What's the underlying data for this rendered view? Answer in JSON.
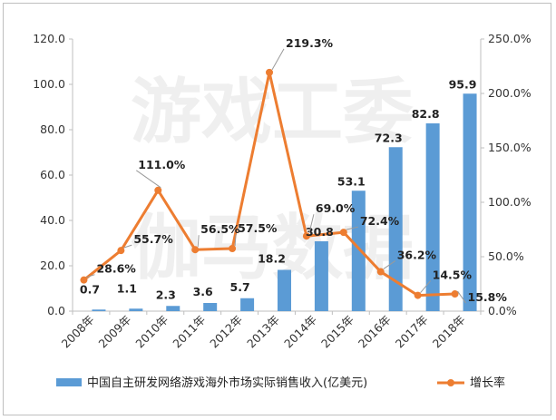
{
  "colors": {
    "bar": "#5b9bd5",
    "line": "#ed7d31",
    "axis": "#bfbfbf"
  },
  "watermark": {
    "line1": "游戏工委",
    "line2": "伽马数据"
  },
  "chart_data": {
    "type": "bar",
    "categories": [
      "2008年",
      "2009年",
      "2010年",
      "2011年",
      "2012年",
      "2013年",
      "2014年",
      "2015年",
      "2016年",
      "2017年",
      "2018年"
    ],
    "series": [
      {
        "name": "中国自主研发网络游戏海外市场实际销售收入(亿美元)",
        "type": "bar",
        "axis": "left",
        "values": [
          0.7,
          1.1,
          2.3,
          3.6,
          5.7,
          18.2,
          30.8,
          53.1,
          72.3,
          82.8,
          95.9
        ]
      },
      {
        "name": "增长率",
        "type": "line",
        "axis": "right",
        "values": [
          28.6,
          55.7,
          111.0,
          56.5,
          57.5,
          219.3,
          69.0,
          72.4,
          36.2,
          14.5,
          15.8
        ]
      }
    ],
    "bar_labels": [
      "0.7",
      "1.1",
      "2.3",
      "3.6",
      "5.7",
      "18.2",
      "30.8",
      "53.1",
      "72.3",
      "82.8",
      "95.9"
    ],
    "rate_labels": [
      "28.6%",
      "55.7%",
      "111.0%",
      "56.5%",
      "57.5%",
      "219.3%",
      "69.0%",
      "72.4%",
      "36.2%",
      "14.5%",
      "15.8%"
    ],
    "y_left": {
      "min": 0,
      "max": 120,
      "ticks": [
        "0.0",
        "20.0",
        "40.0",
        "60.0",
        "80.0",
        "100.0",
        "120.0"
      ]
    },
    "y_right": {
      "min": 0,
      "max": 250,
      "ticks": [
        "0.0%",
        "50.0%",
        "100.0%",
        "150.0%",
        "200.0%",
        "250.0%"
      ]
    },
    "legend_position": "bottom",
    "grid": false
  }
}
